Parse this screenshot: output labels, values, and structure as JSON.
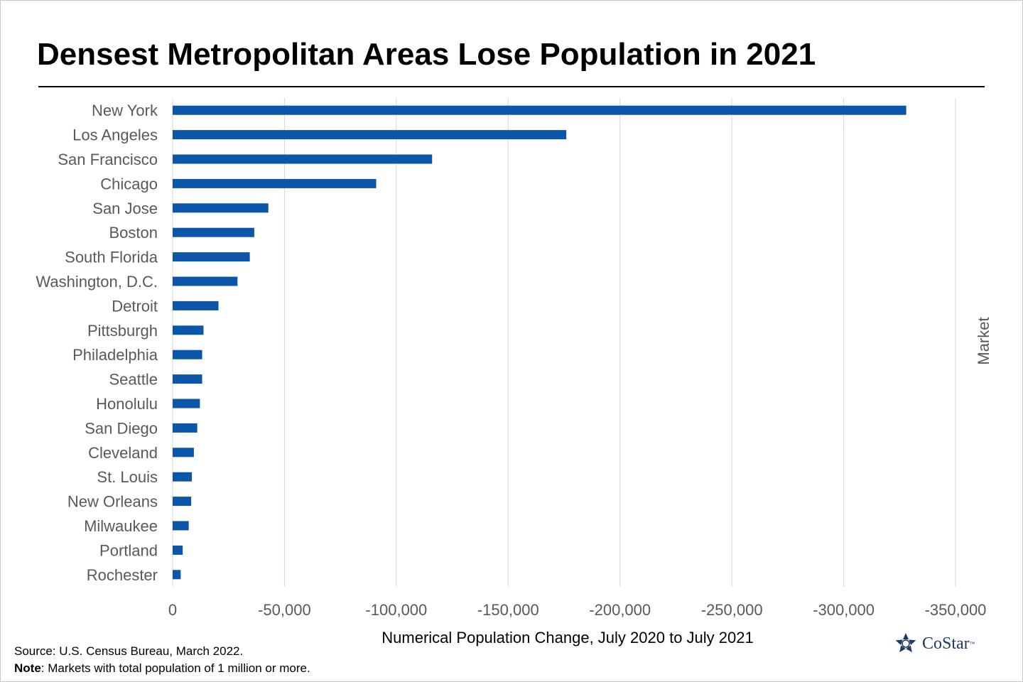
{
  "chart_data": {
    "type": "bar",
    "orientation": "horizontal",
    "title": "Densest Metropolitan Areas Lose Population in 2021",
    "xlabel": "Numerical Population Change, July 2020 to July 2021",
    "ylabel": "Market",
    "xlim": [
      0,
      -350000
    ],
    "xticks": [
      0,
      -50000,
      -100000,
      -150000,
      -200000,
      -250000,
      -300000,
      -350000
    ],
    "xtick_labels": [
      "0",
      "-50,000",
      "-100,000",
      "-150,000",
      "-200,000",
      "-250,000",
      "-300,000",
      "-350,000"
    ],
    "grid": "vertical",
    "bar_color": "#0b56a8",
    "categories": [
      "New York",
      "Los Angeles",
      "San Francisco",
      "Chicago",
      "San Jose",
      "Boston",
      "South Florida",
      "Washington, D.C.",
      "Detroit",
      "Pittsburgh",
      "Philadelphia",
      "Seattle",
      "Honolulu",
      "San Diego",
      "Cleveland",
      "St. Louis",
      "New Orleans",
      "Milwaukee",
      "Portland",
      "Rochester"
    ],
    "values": [
      -327955,
      -176000,
      -116000,
      -91000,
      -42800,
      -36500,
      -34500,
      -29000,
      -20500,
      -13800,
      -13200,
      -13200,
      -12200,
      -11000,
      -9500,
      -8600,
      -8300,
      -7200,
      -4500,
      -3600
    ]
  },
  "footer": {
    "source": "Source: U.S. Census Bureau, March 2022.",
    "note_label": "Note",
    "note_text": ": Markets with total population of 1 million or more."
  },
  "logo": {
    "text": "CoStar",
    "tm": "™",
    "color": "#1f3a68"
  }
}
